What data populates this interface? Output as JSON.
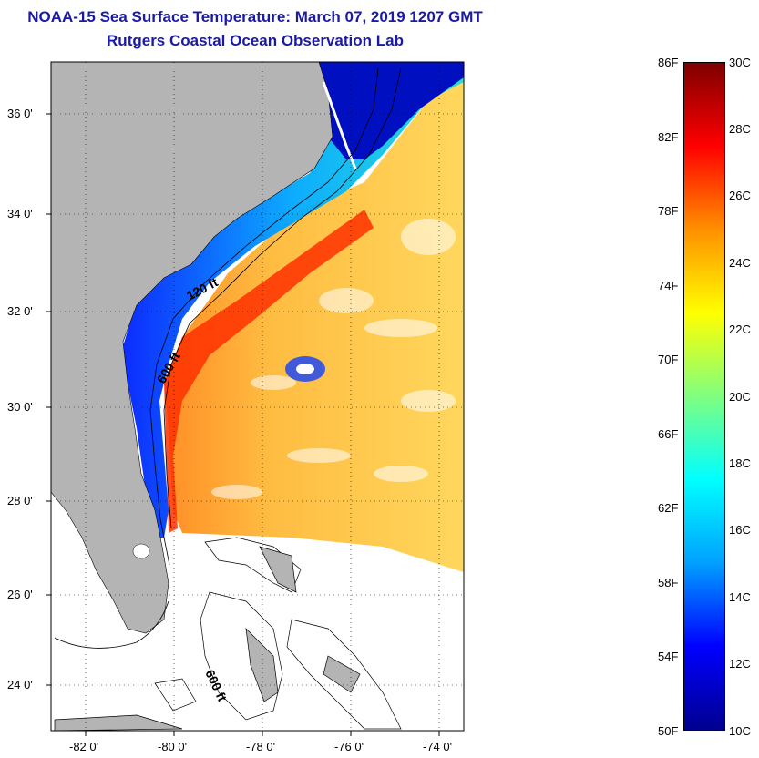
{
  "title": {
    "line1": "NOAA-15 Sea Surface Temperature:  March 07, 2019 1207 GMT",
    "line2": "Rutgers Coastal Ocean Observation Lab"
  },
  "map": {
    "lat_labels": [
      "36 0'",
      "34 0'",
      "32 0'",
      "30 0'",
      "28 0'",
      "26 0'",
      "24 0'"
    ],
    "lon_labels": [
      "-82 0'",
      "-80 0'",
      "-78 0'",
      "-76 0'",
      "-74 0'"
    ],
    "contour_labels": [
      "120 ft",
      "600 ft",
      "600 ft"
    ],
    "land_color": "#b4b4b4"
  },
  "colorbar": {
    "fahrenheit_labels": [
      "86F",
      "82F",
      "78F",
      "74F",
      "70F",
      "66F",
      "62F",
      "58F",
      "54F",
      "50F"
    ],
    "celsius_labels": [
      "30C",
      "28C",
      "26C",
      "24C",
      "22C",
      "20C",
      "18C",
      "16C",
      "14C",
      "12C",
      "10C"
    ],
    "range_f": [
      50,
      86
    ],
    "range_c": [
      10,
      30
    ],
    "colors": [
      "#00008f",
      "#0000ff",
      "#00a0ff",
      "#00ffff",
      "#7fff7f",
      "#ffff00",
      "#ff9000",
      "#ff0000",
      "#7f0000"
    ]
  }
}
